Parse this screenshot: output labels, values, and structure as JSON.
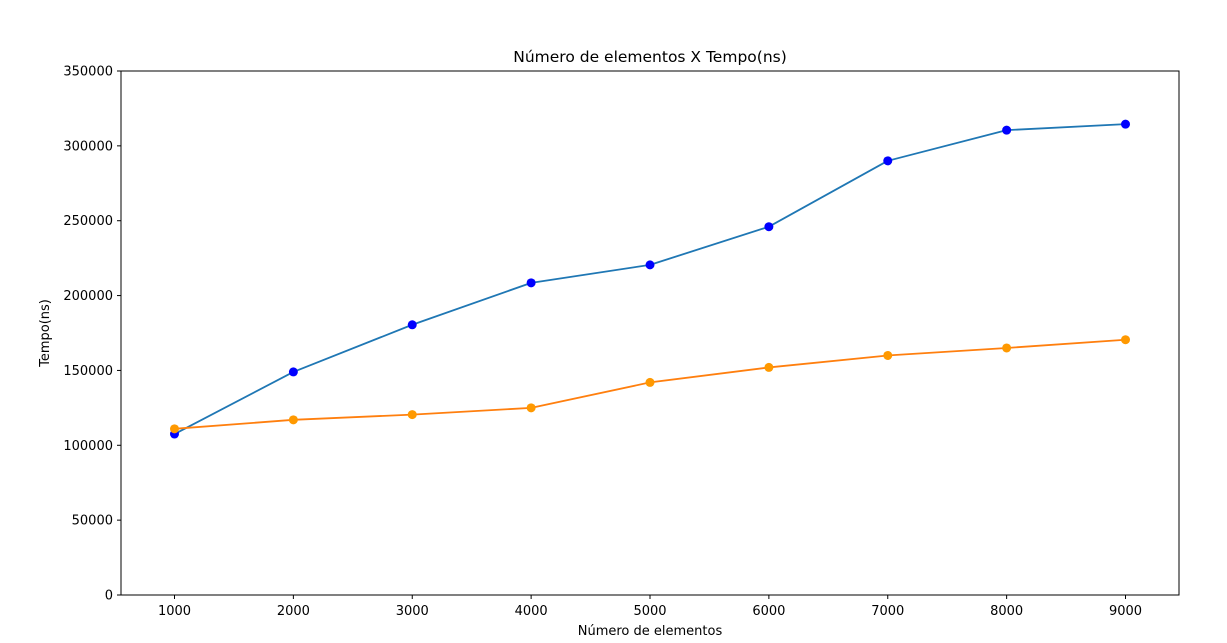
{
  "chart_data": {
    "type": "line",
    "title": "Número de elementos X Tempo(ns)",
    "xlabel": "Número de elementos",
    "ylabel": "Tempo(ns)",
    "x": [
      1000,
      2000,
      3000,
      4000,
      5000,
      6000,
      7000,
      8000,
      9000
    ],
    "xticks": [
      1000,
      2000,
      3000,
      4000,
      5000,
      6000,
      7000,
      8000,
      9000
    ],
    "xlim": [
      550,
      9450
    ],
    "yticks": [
      0,
      50000,
      100000,
      150000,
      200000,
      250000,
      300000,
      350000
    ],
    "ylim": [
      0,
      350000
    ],
    "grid": false,
    "legend": false,
    "series": [
      {
        "values": [
          107500,
          149000,
          180500,
          208500,
          220500,
          246000,
          290000,
          310500,
          314500
        ],
        "line_color": "#1f77b4",
        "marker_color": "#0000ff"
      },
      {
        "values": [
          111000,
          117000,
          120500,
          125000,
          142000,
          152000,
          160000,
          165000,
          170500
        ],
        "line_color": "#ff7f0e",
        "marker_color": "#ff9900"
      }
    ]
  }
}
